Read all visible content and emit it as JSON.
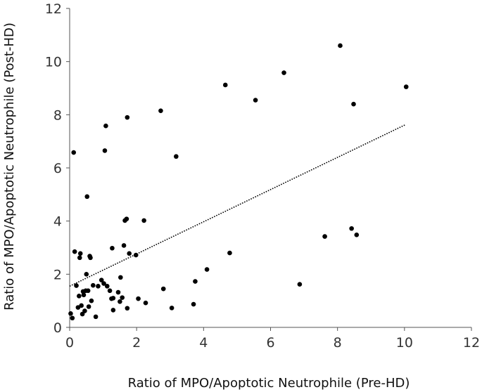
{
  "chart_data": {
    "type": "scatter",
    "title": "",
    "xlabel": "Ratio of MPO/Apoptotic Neutrophile (Pre-HD)",
    "ylabel": "Ratio of MPO/Apoptotic Neutrophile (Post-HD)",
    "xlim": [
      0,
      12
    ],
    "ylim": [
      0,
      12
    ],
    "xticks": [
      0,
      2,
      4,
      6,
      8,
      10,
      12
    ],
    "yticks": [
      0,
      2,
      4,
      6,
      8,
      10,
      12
    ],
    "grid": false,
    "legend": "none",
    "marker_color": "#000000",
    "trendline": {
      "style": "dotted",
      "color": "#000000",
      "x": [
        0,
        10.02
      ],
      "y": [
        1.55,
        7.62
      ]
    },
    "points": [
      [
        0.03,
        0.52
      ],
      [
        0.08,
        0.35
      ],
      [
        0.12,
        6.58
      ],
      [
        0.15,
        2.85
      ],
      [
        0.2,
        1.57
      ],
      [
        0.25,
        0.75
      ],
      [
        0.28,
        1.18
      ],
      [
        0.3,
        2.62
      ],
      [
        0.32,
        2.78
      ],
      [
        0.35,
        0.82
      ],
      [
        0.38,
        0.5
      ],
      [
        0.4,
        1.35
      ],
      [
        0.42,
        1.22
      ],
      [
        0.45,
        0.62
      ],
      [
        0.48,
        1.38
      ],
      [
        0.5,
        2.0
      ],
      [
        0.52,
        4.92
      ],
      [
        0.55,
        1.38
      ],
      [
        0.57,
        0.78
      ],
      [
        0.6,
        2.68
      ],
      [
        0.62,
        2.62
      ],
      [
        0.65,
        1.0
      ],
      [
        0.7,
        1.58
      ],
      [
        0.78,
        0.4
      ],
      [
        0.85,
        1.55
      ],
      [
        0.95,
        1.78
      ],
      [
        1.02,
        1.65
      ],
      [
        1.05,
        6.65
      ],
      [
        1.08,
        7.58
      ],
      [
        1.12,
        1.55
      ],
      [
        1.2,
        1.38
      ],
      [
        1.25,
        1.08
      ],
      [
        1.27,
        2.98
      ],
      [
        1.3,
        0.65
      ],
      [
        1.3,
        1.1
      ],
      [
        1.45,
        1.32
      ],
      [
        1.5,
        0.97
      ],
      [
        1.52,
        1.88
      ],
      [
        1.57,
        1.12
      ],
      [
        1.62,
        3.08
      ],
      [
        1.65,
        4.02
      ],
      [
        1.7,
        4.08
      ],
      [
        1.72,
        7.9
      ],
      [
        1.72,
        0.72
      ],
      [
        1.78,
        2.78
      ],
      [
        1.98,
        2.72
      ],
      [
        2.05,
        1.08
      ],
      [
        2.22,
        4.02
      ],
      [
        2.27,
        0.92
      ],
      [
        2.72,
        8.15
      ],
      [
        2.8,
        1.45
      ],
      [
        3.05,
        0.73
      ],
      [
        3.18,
        6.43
      ],
      [
        3.7,
        0.87
      ],
      [
        3.75,
        1.73
      ],
      [
        4.1,
        2.18
      ],
      [
        4.65,
        9.12
      ],
      [
        4.78,
        2.8
      ],
      [
        5.55,
        8.55
      ],
      [
        6.4,
        9.58
      ],
      [
        6.87,
        1.62
      ],
      [
        7.62,
        3.42
      ],
      [
        8.08,
        10.6
      ],
      [
        8.42,
        3.72
      ],
      [
        8.48,
        8.4
      ],
      [
        8.57,
        3.48
      ],
      [
        10.05,
        9.05
      ]
    ]
  }
}
